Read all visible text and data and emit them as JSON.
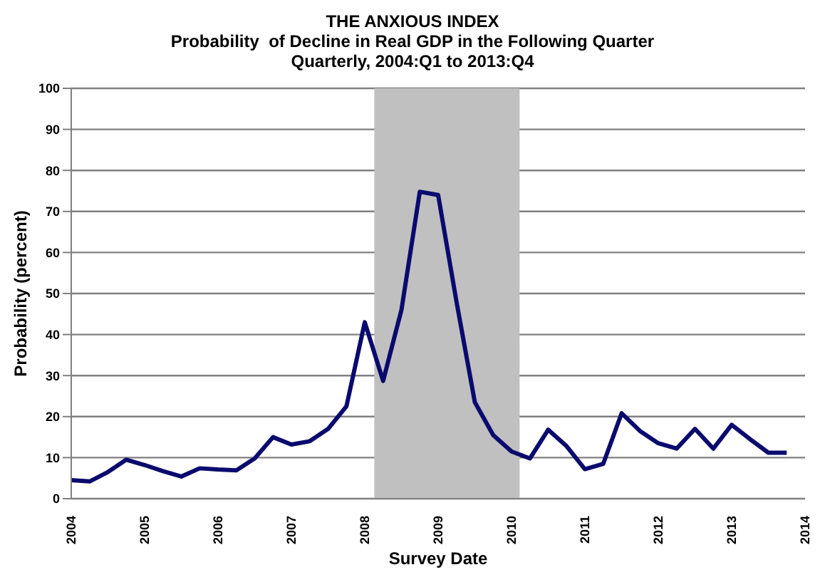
{
  "chart_data": {
    "type": "line",
    "title": "THE ANXIOUS INDEX",
    "subtitle": "Probability  of Decline in Real GDP in the Following Quarter\nQuarterly, 2004:Q1 to 2013:Q4",
    "xlabel": "Survey Date",
    "ylabel": "Probability (percent)",
    "x": [
      2004,
      2004.25,
      2004.5,
      2004.75,
      2005,
      2005.25,
      2005.5,
      2005.75,
      2006,
      2006.25,
      2006.5,
      2006.75,
      2007,
      2007.25,
      2007.5,
      2007.75,
      2008,
      2008.25,
      2008.5,
      2008.75,
      2009,
      2009.25,
      2009.5,
      2009.75,
      2010,
      2010.25,
      2010.5,
      2010.75,
      2011,
      2011.25,
      2011.5,
      2011.75,
      2012,
      2012.25,
      2012.5,
      2012.75,
      2013,
      2013.25,
      2013.5,
      2013.75
    ],
    "series": [
      {
        "color": "#0a0a6e",
        "values": [
          4.5,
          4.2,
          6.5,
          9.5,
          8.2,
          6.7,
          5.4,
          7.4,
          7.1,
          6.9,
          9.8,
          15.0,
          13.2,
          14.0,
          17.0,
          22.5,
          43.0,
          28.7,
          46.0,
          74.8,
          74.0,
          48.0,
          23.5,
          15.5,
          11.5,
          9.8,
          16.8,
          12.8,
          7.2,
          8.5,
          20.8,
          16.5,
          13.5,
          12.2,
          17.0,
          12.2,
          18.0,
          14.5,
          11.2,
          11.2
        ]
      }
    ],
    "xlim": [
      2004,
      2014
    ],
    "xticks": [
      2004,
      2005,
      2006,
      2007,
      2008,
      2009,
      2010,
      2011,
      2012,
      2013,
      2014
    ],
    "ylim": [
      0,
      100
    ],
    "yticks": [
      0,
      10,
      20,
      30,
      40,
      50,
      60,
      70,
      80,
      90,
      100
    ],
    "bands": [
      {
        "axis": "x",
        "from": 2008.13,
        "to": 2010.11,
        "color": "#c0c0c0"
      }
    ],
    "grid": "y",
    "legend": false,
    "marker": "none",
    "line_style": "solid"
  }
}
